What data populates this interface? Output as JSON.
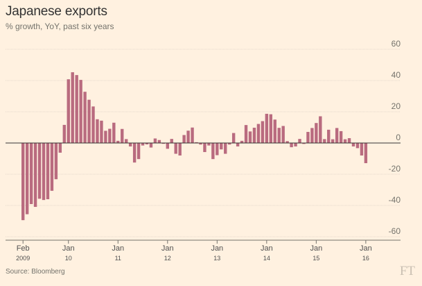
{
  "title": "Japanese exports",
  "subtitle": "% growth, YoY, past six years",
  "source": "Source: Bloomberg",
  "brand": "FT",
  "colors": {
    "bar": "#b96b7f",
    "grid": "#e5d9cc",
    "zero_line": "#333333",
    "background": "#fff1e0"
  },
  "chart_data": {
    "type": "bar",
    "title": "Japanese exports",
    "subtitle": "% growth, YoY, past six years",
    "xlabel": "",
    "ylabel": "% growth, YoY",
    "ylim": [
      -60,
      60
    ],
    "yticks": [
      -60,
      -40,
      -20,
      0,
      20,
      40,
      60
    ],
    "grid": true,
    "x_start": "2009-02",
    "x_ticks": [
      {
        "index": 0,
        "label": "Feb",
        "sub": "2009"
      },
      {
        "index": 11,
        "label": "Jan",
        "sub": "10"
      },
      {
        "index": 23,
        "label": "Jan",
        "sub": "11"
      },
      {
        "index": 35,
        "label": "Jan",
        "sub": "12"
      },
      {
        "index": 47,
        "label": "Jan",
        "sub": "13"
      },
      {
        "index": 59,
        "label": "Jan",
        "sub": "14"
      },
      {
        "index": 71,
        "label": "Jan",
        "sub": "15"
      },
      {
        "index": 83,
        "label": "Jan",
        "sub": "16"
      }
    ],
    "series": [
      {
        "name": "Japanese exports % growth YoY",
        "values": [
          -49.4,
          -45.6,
          -39.1,
          -40.9,
          -35.7,
          -36.5,
          -36.0,
          -30.6,
          -23.2,
          -6.2,
          11.6,
          40.8,
          45.3,
          43.5,
          40.4,
          32.8,
          27.7,
          23.4,
          15.2,
          14.3,
          7.8,
          9.1,
          13.0,
          1.4,
          9.0,
          2.5,
          -2.2,
          -12.5,
          -10.3,
          -1.6,
          -0.9,
          -2.9,
          2.9,
          1.9,
          -0.5,
          -3.7,
          2.6,
          -6.9,
          -8.0,
          5.1,
          7.9,
          9.9,
          0.5,
          -1.0,
          -5.8,
          -1.6,
          -10.3,
          -7.8,
          -4.1,
          -6.9,
          -1.0,
          6.4,
          -2.2,
          1.4,
          11.5,
          7.4,
          9.8,
          12.2,
          14.0,
          18.7,
          18.4,
          15.0,
          9.7,
          10.9,
          1.2,
          -2.7,
          -2.2,
          2.6,
          -0.6,
          7.1,
          9.6,
          12.8,
          17.1,
          2.5,
          8.5,
          2.4,
          9.6,
          7.6,
          2.4,
          3.1,
          -2.2,
          -3.3,
          -8.0,
          -12.9
        ]
      }
    ]
  }
}
